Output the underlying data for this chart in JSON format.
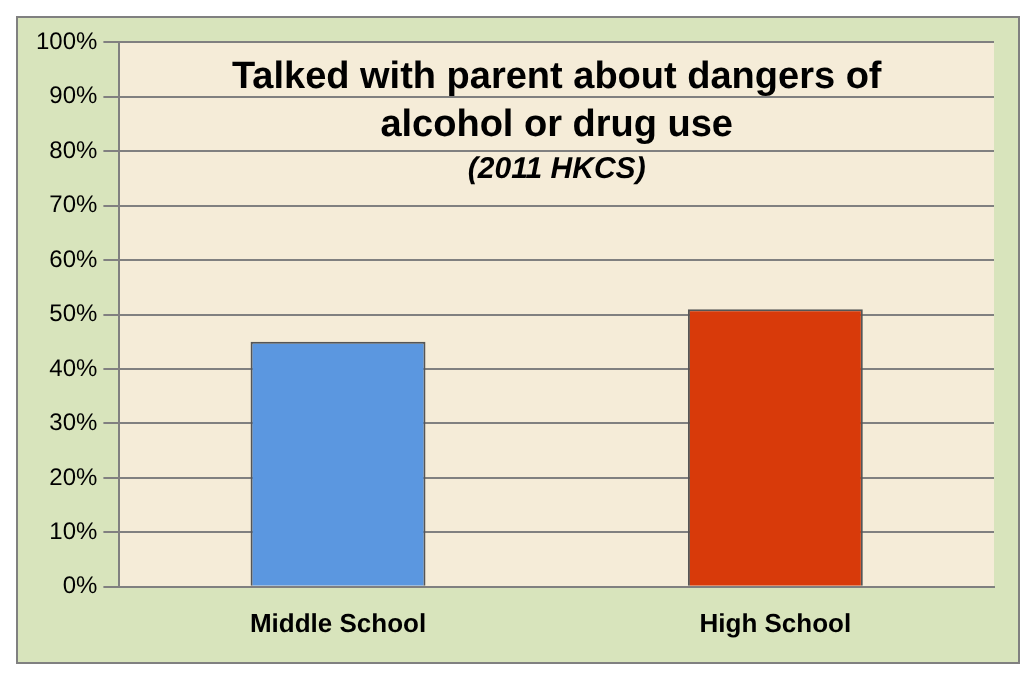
{
  "chart_data": {
    "type": "bar",
    "title": "Talked with parent about dangers of alcohol or drug use",
    "subtitle": "(2011 HKCS)",
    "categories": [
      "Middle School",
      "High School"
    ],
    "values": [
      45,
      51
    ],
    "colors": [
      "#5b97e0",
      "#d83a0a"
    ],
    "ylim": [
      0,
      100
    ],
    "yticks": [
      {
        "value": 0,
        "label": "0%"
      },
      {
        "value": 10,
        "label": "10%"
      },
      {
        "value": 20,
        "label": "20%"
      },
      {
        "value": 30,
        "label": "30%"
      },
      {
        "value": 40,
        "label": "40%"
      },
      {
        "value": 50,
        "label": "50%"
      },
      {
        "value": 60,
        "label": "60%"
      },
      {
        "value": 70,
        "label": "70%"
      },
      {
        "value": 80,
        "label": "80%"
      },
      {
        "value": 90,
        "label": "90%"
      },
      {
        "value": 100,
        "label": "100%"
      }
    ],
    "grid": "y",
    "legend": false
  }
}
